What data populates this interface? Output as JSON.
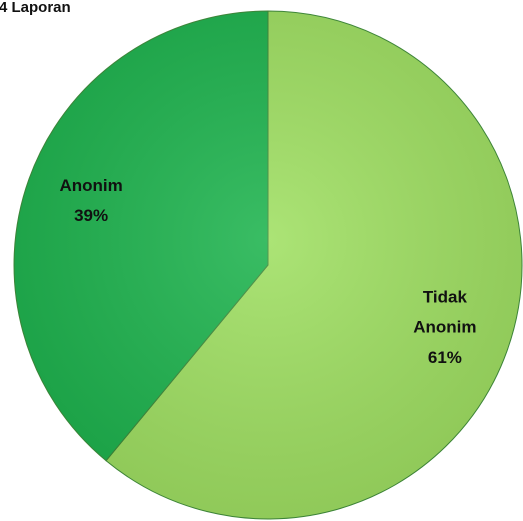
{
  "chart_data": {
    "type": "pie",
    "title": "4 Laporan",
    "categories": [
      "Tidak Anonim",
      "Anonim"
    ],
    "values": [
      61,
      39
    ],
    "value_labels": [
      "61%",
      "39%"
    ],
    "colors": [
      "#a0e063",
      "#1fb44f"
    ]
  }
}
